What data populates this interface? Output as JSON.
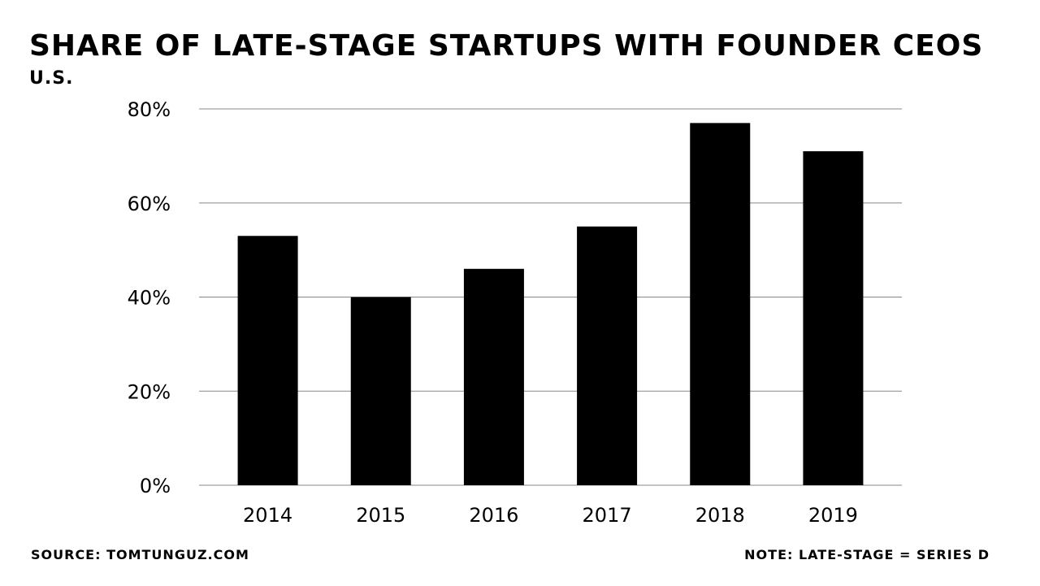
{
  "chart_data": {
    "type": "bar",
    "title": "SHARE OF LATE-STAGE STARTUPS WITH FOUNDER CEOS",
    "subtitle": "U.S.",
    "categories": [
      "2014",
      "2015",
      "2016",
      "2017",
      "2018",
      "2019"
    ],
    "values": [
      53,
      40,
      46,
      55,
      77,
      71
    ],
    "value_unit": "%",
    "ylim": [
      0,
      80
    ],
    "yticks": [
      0,
      20,
      40,
      60,
      80
    ],
    "ytick_labels": [
      "0%",
      "20%",
      "40%",
      "60%",
      "80%"
    ],
    "grid": true,
    "bar_color": "#000000",
    "grid_color": "#888888",
    "xlabel": "",
    "ylabel": ""
  },
  "footer": {
    "source": "SOURCE: TOMTUNGUZ.COM",
    "note": "NOTE: LATE-STAGE = SERIES D"
  }
}
